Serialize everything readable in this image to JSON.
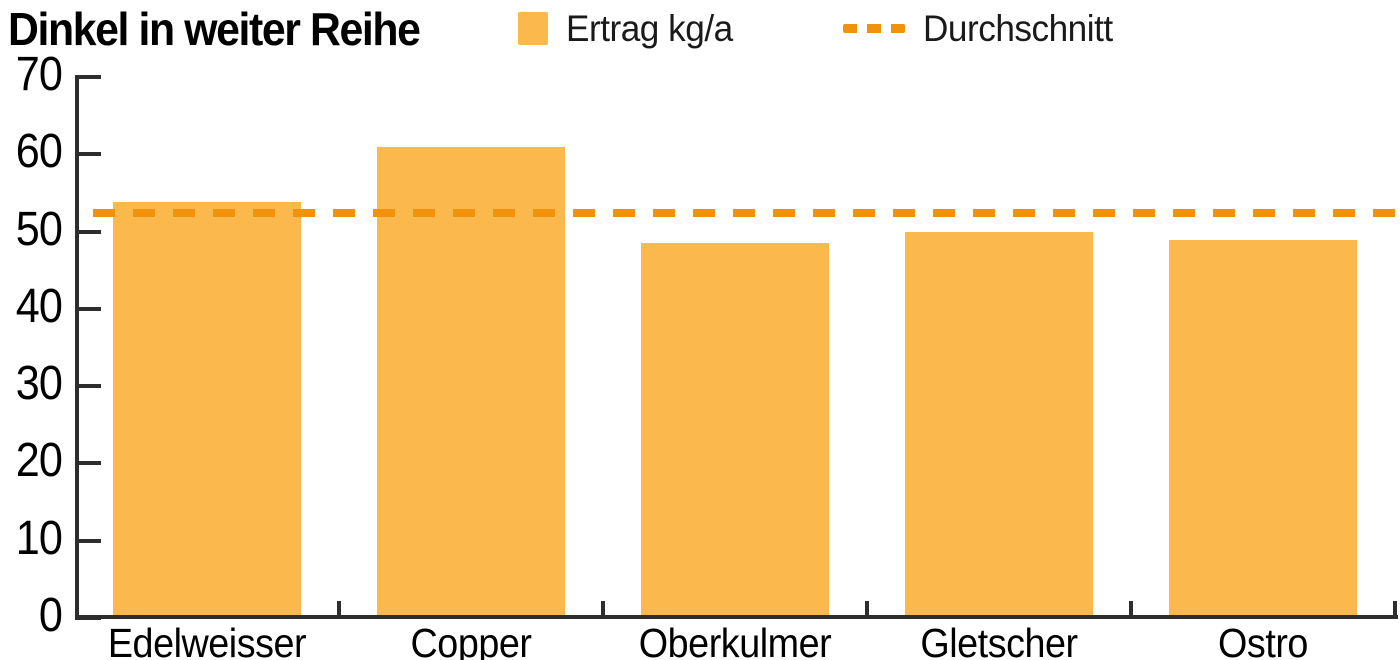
{
  "title": "Dinkel in weiter Reihe",
  "legend": {
    "bar_label": "Ertrag kg/a",
    "avg_label": "Durchschnitt"
  },
  "colors": {
    "bar": "#FBB84C",
    "average_line": "#F0920B",
    "axis": "#2D2D2D",
    "text": "#000000",
    "background": "#FFFFFF"
  },
  "chart_data": {
    "type": "bar",
    "title": "Dinkel in weiter Reihe",
    "categories": [
      "Edelweisser",
      "Copper",
      "Oberkulmer",
      "Gletscher",
      "Ostro"
    ],
    "series": [
      {
        "name": "Ertrag kg/a",
        "values": [
          53.8,
          60.9,
          48.5,
          49.9,
          48.9
        ]
      }
    ],
    "average_line": {
      "label": "Durchschnitt",
      "value": 52.4,
      "style": "dashed"
    },
    "xlabel": "",
    "ylabel": "",
    "ylim": [
      0,
      70
    ],
    "yticks": [
      0,
      10,
      20,
      30,
      40,
      50,
      60,
      70
    ],
    "grid": false,
    "legend_position": "top"
  }
}
